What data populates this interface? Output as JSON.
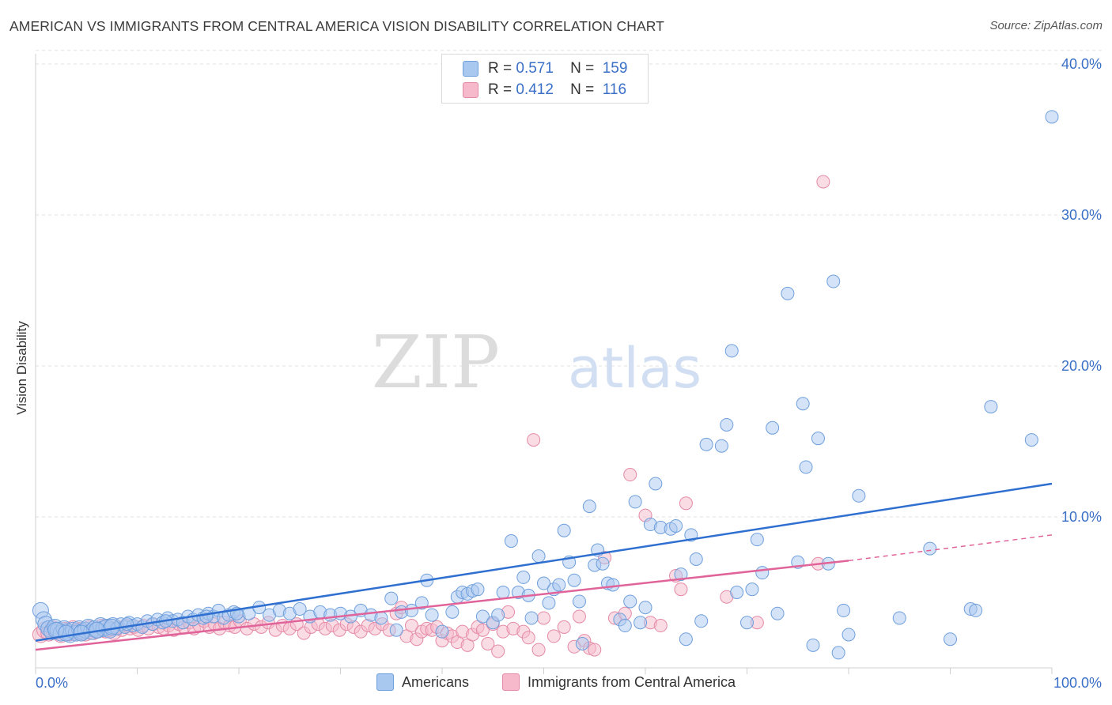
{
  "header": {
    "title": "AMERICAN VS IMMIGRANTS FROM CENTRAL AMERICA VISION DISABILITY CORRELATION CHART",
    "source": "Source: ZipAtlas.com"
  },
  "watermark": {
    "part1": "ZIP",
    "part2": "atlas"
  },
  "legend": {
    "series1": {
      "r_label": "R =",
      "r_value": "0.571",
      "n_label": "N =",
      "n_value": "159"
    },
    "series2": {
      "r_label": "R =",
      "r_value": "0.412",
      "n_label": "N =",
      "n_value": "116"
    }
  },
  "colors": {
    "americans_fill": "#a9c8f0",
    "americans_stroke": "#6f9fdc",
    "americans_line": "#2f6fd0",
    "immigrants_fill": "#f6b9cb",
    "immigrants_stroke": "#e58aa6",
    "immigrants_line": "#e0649a",
    "axis_text": "#3a6fc7"
  },
  "chart_data": {
    "type": "scatter",
    "title": "AMERICAN VS IMMIGRANTS FROM CENTRAL AMERICA VISION DISABILITY CORRELATION CHART",
    "xlabel": "",
    "ylabel": "Vision Disability",
    "xlim": [
      0,
      100
    ],
    "ylim": [
      0,
      42
    ],
    "x_tick_labels": [
      "0.0%",
      "100.0%"
    ],
    "y_ticks": [
      10,
      20,
      30,
      40
    ],
    "y_tick_labels": [
      "10.0%",
      "20.0%",
      "30.0%",
      "40.0%"
    ],
    "grid": "horizontal dashed",
    "legend_position": "top-center",
    "series": [
      {
        "name": "Americans",
        "r": 0.571,
        "n": 159,
        "trend": {
          "x": [
            0,
            100
          ],
          "y": [
            1.8,
            12.2
          ]
        },
        "points": [
          [
            0.5,
            3.8
          ],
          [
            0.8,
            3.2
          ],
          [
            1.0,
            2.9
          ],
          [
            1.3,
            2.6
          ],
          [
            1.6,
            2.4
          ],
          [
            1.9,
            2.7
          ],
          [
            2.2,
            2.5
          ],
          [
            2.5,
            2.3
          ],
          [
            2.8,
            2.6
          ],
          [
            3.1,
            2.4
          ],
          [
            3.4,
            2.2
          ],
          [
            3.7,
            2.5
          ],
          [
            4.0,
            2.3
          ],
          [
            4.3,
            2.6
          ],
          [
            4.6,
            2.4
          ],
          [
            4.9,
            2.5
          ],
          [
            5.2,
            2.7
          ],
          [
            5.5,
            2.4
          ],
          [
            5.8,
            2.6
          ],
          [
            6.1,
            2.5
          ],
          [
            6.4,
            2.8
          ],
          [
            6.7,
            2.6
          ],
          [
            7.0,
            2.7
          ],
          [
            7.3,
            2.5
          ],
          [
            7.6,
            2.8
          ],
          [
            8.0,
            2.6
          ],
          [
            8.4,
            2.9
          ],
          [
            8.8,
            2.7
          ],
          [
            9.2,
            3.0
          ],
          [
            9.6,
            2.8
          ],
          [
            10.0,
            2.9
          ],
          [
            10.5,
            2.7
          ],
          [
            11.0,
            3.1
          ],
          [
            11.5,
            2.9
          ],
          [
            12.0,
            3.2
          ],
          [
            12.5,
            3.0
          ],
          [
            13.0,
            3.3
          ],
          [
            13.5,
            3.1
          ],
          [
            14.0,
            3.2
          ],
          [
            14.5,
            3.0
          ],
          [
            15.0,
            3.4
          ],
          [
            15.5,
            3.2
          ],
          [
            16.0,
            3.5
          ],
          [
            16.5,
            3.3
          ],
          [
            17.0,
            3.6
          ],
          [
            17.5,
            3.4
          ],
          [
            18.0,
            3.8
          ],
          [
            18.5,
            3.3
          ],
          [
            19.0,
            3.5
          ],
          [
            19.5,
            3.7
          ],
          [
            20.0,
            3.4
          ],
          [
            21.0,
            3.6
          ],
          [
            22.0,
            4.0
          ],
          [
            23.0,
            3.5
          ],
          [
            24.0,
            3.8
          ],
          [
            25.0,
            3.6
          ],
          [
            26.0,
            3.9
          ],
          [
            27.0,
            3.4
          ],
          [
            28.0,
            3.7
          ],
          [
            29.0,
            3.5
          ],
          [
            30.0,
            3.6
          ],
          [
            31.0,
            3.4
          ],
          [
            32.0,
            3.8
          ],
          [
            33.0,
            3.5
          ],
          [
            34.0,
            3.3
          ],
          [
            35.0,
            4.6
          ],
          [
            35.5,
            2.5
          ],
          [
            36.0,
            3.7
          ],
          [
            37.0,
            3.8
          ],
          [
            38.0,
            4.3
          ],
          [
            38.5,
            5.8
          ],
          [
            39.0,
            3.5
          ],
          [
            40.0,
            2.4
          ],
          [
            41.0,
            3.7
          ],
          [
            41.5,
            4.7
          ],
          [
            42.0,
            5.0
          ],
          [
            42.5,
            4.9
          ],
          [
            43.0,
            5.1
          ],
          [
            43.5,
            5.2
          ],
          [
            44.0,
            3.4
          ],
          [
            45.0,
            3.0
          ],
          [
            45.5,
            3.5
          ],
          [
            46.0,
            5.0
          ],
          [
            46.8,
            8.4
          ],
          [
            47.5,
            5.0
          ],
          [
            48.0,
            6.0
          ],
          [
            48.5,
            4.8
          ],
          [
            48.8,
            3.3
          ],
          [
            49.5,
            7.4
          ],
          [
            50.0,
            5.6
          ],
          [
            50.5,
            4.3
          ],
          [
            51.0,
            5.2
          ],
          [
            51.5,
            5.5
          ],
          [
            52.0,
            9.1
          ],
          [
            52.5,
            7.0
          ],
          [
            53.0,
            5.8
          ],
          [
            53.5,
            4.4
          ],
          [
            53.8,
            1.6
          ],
          [
            54.5,
            10.7
          ],
          [
            55.0,
            6.8
          ],
          [
            55.3,
            7.8
          ],
          [
            55.8,
            6.9
          ],
          [
            56.3,
            5.6
          ],
          [
            56.8,
            5.5
          ],
          [
            57.5,
            3.2
          ],
          [
            58.0,
            2.8
          ],
          [
            58.5,
            4.4
          ],
          [
            59.0,
            11.0
          ],
          [
            59.5,
            3.0
          ],
          [
            60.0,
            4.0
          ],
          [
            60.5,
            9.5
          ],
          [
            61.0,
            12.2
          ],
          [
            61.5,
            9.3
          ],
          [
            62.5,
            9.2
          ],
          [
            63.0,
            9.4
          ],
          [
            63.5,
            6.2
          ],
          [
            64.0,
            1.9
          ],
          [
            64.5,
            8.8
          ],
          [
            65.0,
            7.2
          ],
          [
            65.5,
            3.1
          ],
          [
            66.0,
            14.8
          ],
          [
            67.5,
            14.7
          ],
          [
            68.0,
            16.1
          ],
          [
            68.5,
            21.0
          ],
          [
            69.0,
            5.0
          ],
          [
            70.0,
            3.0
          ],
          [
            70.5,
            5.2
          ],
          [
            71.0,
            8.5
          ],
          [
            71.5,
            6.3
          ],
          [
            72.5,
            15.9
          ],
          [
            73.0,
            3.6
          ],
          [
            74.0,
            24.8
          ],
          [
            75.0,
            7.0
          ],
          [
            75.5,
            17.5
          ],
          [
            75.8,
            13.3
          ],
          [
            76.5,
            1.5
          ],
          [
            77.0,
            15.2
          ],
          [
            78.0,
            6.9
          ],
          [
            78.5,
            25.6
          ],
          [
            79.0,
            1.0
          ],
          [
            79.5,
            3.8
          ],
          [
            80.0,
            2.2
          ],
          [
            81.0,
            11.4
          ],
          [
            85.0,
            3.3
          ],
          [
            88.0,
            7.9
          ],
          [
            90.0,
            1.9
          ],
          [
            92.0,
            3.9
          ],
          [
            92.5,
            3.8
          ],
          [
            94.0,
            17.3
          ],
          [
            98.0,
            15.1
          ],
          [
            100.0,
            36.5
          ],
          [
            2.0,
            2.5
          ],
          [
            3.0,
            2.3
          ],
          [
            4.5,
            2.3
          ],
          [
            6.0,
            2.5
          ],
          [
            7.5,
            2.7
          ],
          [
            9.0,
            2.9
          ],
          [
            12.8,
            3.1
          ],
          [
            16.8,
            3.4
          ],
          [
            19.8,
            3.6
          ]
        ]
      },
      {
        "name": "Immigrants from Central America",
        "r": 0.412,
        "n": 116,
        "trend": {
          "x": [
            0,
            80,
            100
          ],
          "y": [
            1.2,
            7.1,
            8.8
          ],
          "dashed_from_x": 80
        },
        "points": [
          [
            0.5,
            2.2
          ],
          [
            0.9,
            2.5
          ],
          [
            1.3,
            2.3
          ],
          [
            1.7,
            2.6
          ],
          [
            2.1,
            2.4
          ],
          [
            2.5,
            2.2
          ],
          [
            2.9,
            2.5
          ],
          [
            3.3,
            2.3
          ],
          [
            3.7,
            2.6
          ],
          [
            4.1,
            2.4
          ],
          [
            4.5,
            2.5
          ],
          [
            4.9,
            2.3
          ],
          [
            5.3,
            2.6
          ],
          [
            5.7,
            2.4
          ],
          [
            6.1,
            2.5
          ],
          [
            6.5,
            2.7
          ],
          [
            6.9,
            2.5
          ],
          [
            7.3,
            2.6
          ],
          [
            7.7,
            2.4
          ],
          [
            8.1,
            2.7
          ],
          [
            8.5,
            2.5
          ],
          [
            8.9,
            2.8
          ],
          [
            9.3,
            2.6
          ],
          [
            9.7,
            2.7
          ],
          [
            10.1,
            2.5
          ],
          [
            10.6,
            2.8
          ],
          [
            11.1,
            2.6
          ],
          [
            11.6,
            2.9
          ],
          [
            12.1,
            2.7
          ],
          [
            12.6,
            2.6
          ],
          [
            13.1,
            2.8
          ],
          [
            13.6,
            2.5
          ],
          [
            14.1,
            2.9
          ],
          [
            14.6,
            2.7
          ],
          [
            15.1,
            3.0
          ],
          [
            15.6,
            2.6
          ],
          [
            16.1,
            2.8
          ],
          [
            16.6,
            3.1
          ],
          [
            17.1,
            2.7
          ],
          [
            17.6,
            2.9
          ],
          [
            18.1,
            2.6
          ],
          [
            18.6,
            3.0
          ],
          [
            19.1,
            2.8
          ],
          [
            19.6,
            2.7
          ],
          [
            20.1,
            3.1
          ],
          [
            20.8,
            2.6
          ],
          [
            21.5,
            2.9
          ],
          [
            22.2,
            2.7
          ],
          [
            22.9,
            3.0
          ],
          [
            23.6,
            2.5
          ],
          [
            24.3,
            2.8
          ],
          [
            25.0,
            2.6
          ],
          [
            25.7,
            2.9
          ],
          [
            26.4,
            2.3
          ],
          [
            27.1,
            2.7
          ],
          [
            27.8,
            2.9
          ],
          [
            28.5,
            2.6
          ],
          [
            29.2,
            2.8
          ],
          [
            29.9,
            2.5
          ],
          [
            30.6,
            2.9
          ],
          [
            31.3,
            2.7
          ],
          [
            32.0,
            2.4
          ],
          [
            32.7,
            2.8
          ],
          [
            33.4,
            2.6
          ],
          [
            34.1,
            2.9
          ],
          [
            34.8,
            2.5
          ],
          [
            35.5,
            3.6
          ],
          [
            36.0,
            4.0
          ],
          [
            36.5,
            2.1
          ],
          [
            37.0,
            2.8
          ],
          [
            37.5,
            1.9
          ],
          [
            38.0,
            2.4
          ],
          [
            38.5,
            2.6
          ],
          [
            39.0,
            2.5
          ],
          [
            39.5,
            2.7
          ],
          [
            40.0,
            1.8
          ],
          [
            40.5,
            2.3
          ],
          [
            41.0,
            2.1
          ],
          [
            41.5,
            1.7
          ],
          [
            42.0,
            2.4
          ],
          [
            42.5,
            1.5
          ],
          [
            43.0,
            2.2
          ],
          [
            43.5,
            2.7
          ],
          [
            44.0,
            2.5
          ],
          [
            44.5,
            1.6
          ],
          [
            45.0,
            2.9
          ],
          [
            45.5,
            1.1
          ],
          [
            46.0,
            2.4
          ],
          [
            46.5,
            3.7
          ],
          [
            47.0,
            2.6
          ],
          [
            48.0,
            2.4
          ],
          [
            48.5,
            2.0
          ],
          [
            49.0,
            15.1
          ],
          [
            49.5,
            1.2
          ],
          [
            50.0,
            3.3
          ],
          [
            51.0,
            2.1
          ],
          [
            52.0,
            2.7
          ],
          [
            53.0,
            1.4
          ],
          [
            53.5,
            3.4
          ],
          [
            54.0,
            1.8
          ],
          [
            54.5,
            1.3
          ],
          [
            55.0,
            1.2
          ],
          [
            56.0,
            7.3
          ],
          [
            57.0,
            3.3
          ],
          [
            58.0,
            3.6
          ],
          [
            58.5,
            12.8
          ],
          [
            60.0,
            10.1
          ],
          [
            60.5,
            3.0
          ],
          [
            61.5,
            2.8
          ],
          [
            63.0,
            6.1
          ],
          [
            63.5,
            5.2
          ],
          [
            64.0,
            10.9
          ],
          [
            68.0,
            4.7
          ],
          [
            71.0,
            3.0
          ],
          [
            77.0,
            6.9
          ],
          [
            77.5,
            32.2
          ]
        ]
      }
    ]
  },
  "bottom_legend": {
    "series1_label": "Americans",
    "series2_label": "Immigrants from Central America"
  }
}
